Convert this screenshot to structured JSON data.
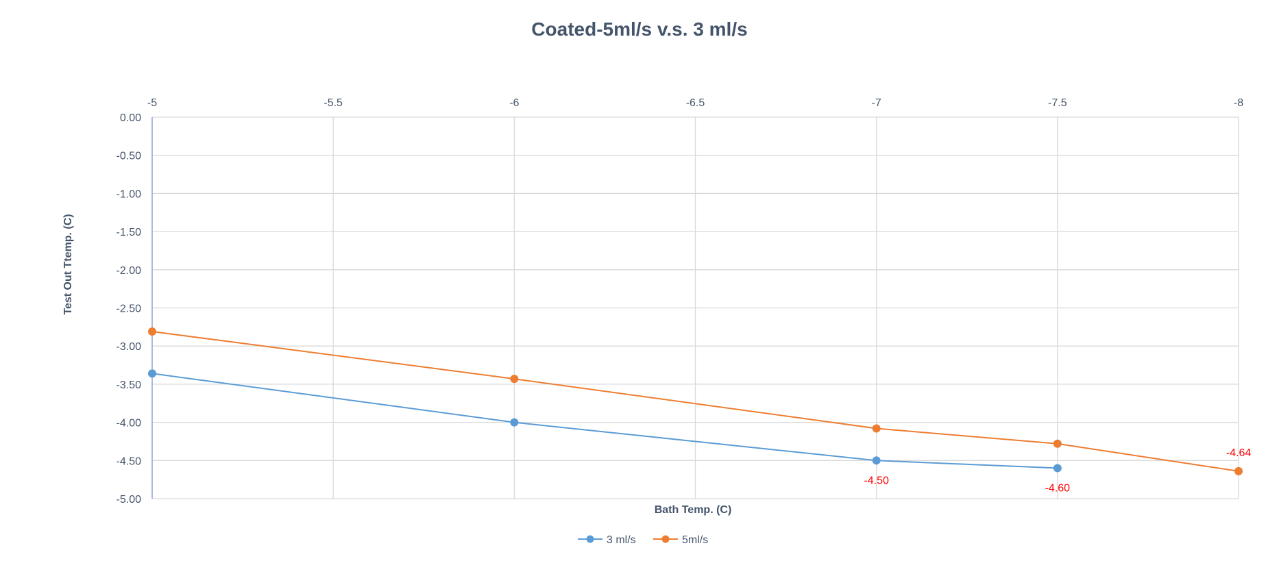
{
  "chart_data": {
    "type": "line",
    "title": "Coated-5ml/s v.s. 3 ml/s",
    "xlabel": "Bath Temp. (C)",
    "ylabel": "Test Out Ttemp. (C)",
    "x_tick_labels": [
      "-5",
      "-5.5",
      "-6",
      "-6.5",
      "-7",
      "-7.5",
      "-8"
    ],
    "y_tick_labels": [
      "0.00",
      "-0.50",
      "-1.00",
      "-1.50",
      "-2.00",
      "-2.50",
      "-3.00",
      "-3.50",
      "-4.00",
      "-4.50",
      "-5.00"
    ],
    "xlim": [
      -5,
      -8
    ],
    "ylim": [
      -5,
      0
    ],
    "x_axis_position": "top",
    "grid": true,
    "legend_position": "bottom",
    "series": [
      {
        "name": "3 ml/s",
        "color": "#5b9bd5",
        "x": [
          -5,
          -6,
          -7,
          -7.5
        ],
        "values": [
          -3.36,
          -4.0,
          -4.5,
          -4.6
        ],
        "data_labels": [
          null,
          null,
          "-4.50",
          "-4.60"
        ]
      },
      {
        "name": "5ml/s",
        "color": "#ed7d31",
        "x": [
          -5,
          -6,
          -7,
          -7.5,
          -8
        ],
        "values": [
          -2.81,
          -3.43,
          -4.08,
          -4.28,
          -4.64
        ],
        "data_labels": [
          null,
          null,
          null,
          null,
          "-4.64"
        ]
      }
    ],
    "data_label_color": "#ff0000"
  }
}
